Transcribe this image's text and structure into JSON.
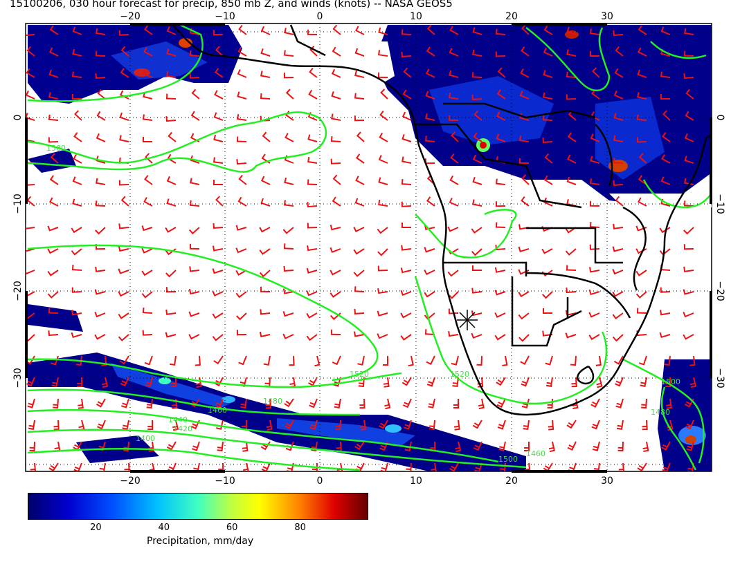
{
  "title": "15100206, 030 hour forecast for precip, 850 mb Z, and winds (knots) -- NASA GEOS5",
  "map": {
    "lon_ticks": [
      "−20",
      "−10",
      "0",
      "10",
      "20",
      "30"
    ],
    "lat_ticks": [
      "0",
      "−10",
      "−20",
      "−30"
    ],
    "contour_labels": [
      "1500",
      "1520",
      "1480",
      "1460",
      "1440",
      "1420",
      "1400",
      "1500",
      "1520",
      "1480",
      "1500",
      "1460"
    ],
    "colors": {
      "precip_low": "#00008b",
      "contour": "#22ee22",
      "wind_barb": "#ee1111",
      "coast": "#000000"
    }
  },
  "colorbar": {
    "ticks": [
      "20",
      "40",
      "60",
      "80"
    ],
    "label": "Precipitation, mm/day",
    "range": [
      0,
      100
    ],
    "tick_values": [
      20,
      40,
      60,
      80
    ]
  }
}
